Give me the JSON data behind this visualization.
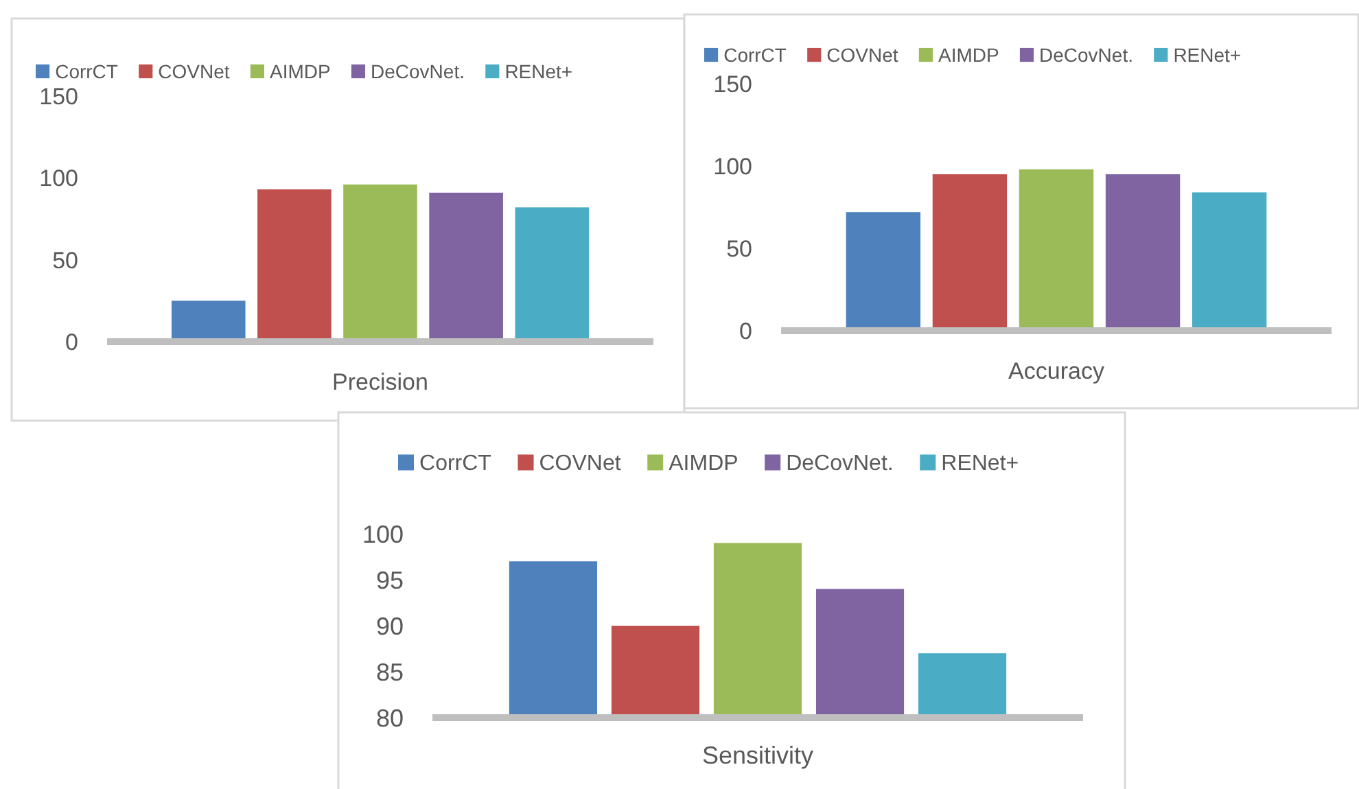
{
  "chart_data": [
    {
      "type": "bar",
      "categories": [
        "Precision"
      ],
      "series": [
        {
          "name": "CorrCT",
          "color": "#4f81bd",
          "values": [
            25
          ]
        },
        {
          "name": "COVNet",
          "color": "#c0504d",
          "values": [
            93
          ]
        },
        {
          "name": "AIMDP",
          "color": "#9bbb59",
          "values": [
            96
          ]
        },
        {
          "name": "DeCovNet.",
          "color": "#8064a2",
          "values": [
            91
          ]
        },
        {
          "name": "RENet+",
          "color": "#4bacc6",
          "values": [
            82
          ]
        }
      ],
      "ylim": [
        0,
        150
      ],
      "yticks": [
        0,
        50,
        100,
        150
      ],
      "legend": "top"
    },
    {
      "type": "bar",
      "categories": [
        "Accuracy"
      ],
      "series": [
        {
          "name": "CorrCT",
          "color": "#4f81bd",
          "values": [
            72
          ]
        },
        {
          "name": "COVNet",
          "color": "#c0504d",
          "values": [
            95
          ]
        },
        {
          "name": "AIMDP",
          "color": "#9bbb59",
          "values": [
            98
          ]
        },
        {
          "name": "DeCovNet.",
          "color": "#8064a2",
          "values": [
            95
          ]
        },
        {
          "name": "RENet+",
          "color": "#4bacc6",
          "values": [
            84
          ]
        }
      ],
      "ylim": [
        0,
        150
      ],
      "yticks": [
        0,
        50,
        100,
        150
      ],
      "legend": "top"
    },
    {
      "type": "bar",
      "categories": [
        "Sensitivity"
      ],
      "series": [
        {
          "name": "CorrCT",
          "color": "#4f81bd",
          "values": [
            97
          ]
        },
        {
          "name": "COVNet",
          "color": "#c0504d",
          "values": [
            90
          ]
        },
        {
          "name": "AIMDP",
          "color": "#9bbb59",
          "values": [
            99
          ]
        },
        {
          "name": "DeCovNet.",
          "color": "#8064a2",
          "values": [
            94
          ]
        },
        {
          "name": "RENet+",
          "color": "#4bacc6",
          "values": [
            87
          ]
        }
      ],
      "ylim": [
        80,
        100
      ],
      "yticks": [
        80,
        85,
        90,
        95,
        100
      ],
      "legend": "top"
    }
  ]
}
